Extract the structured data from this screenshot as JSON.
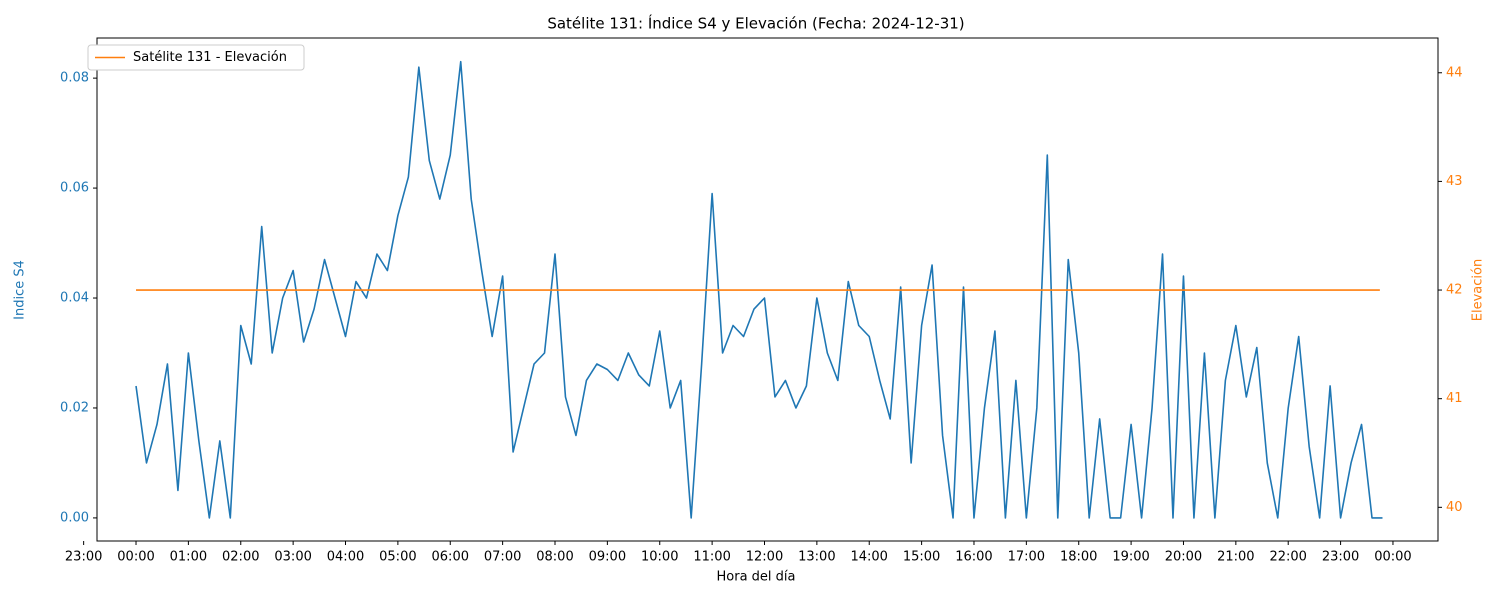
{
  "chart_data": {
    "type": "line",
    "title": "Satélite 131: Índice S4 y Elevación (Fecha: 2024-12-31)",
    "xlabel": "Hora del día",
    "ylabel": "Indice S4",
    "y2label": "Elevación",
    "legend": "upper left",
    "xlim": [
      -0.745,
      24.86
    ],
    "ylim": [
      -0.0042,
      0.0873
    ],
    "y2lim": [
      39.69,
      44.32
    ],
    "xticks": [
      {
        "value": -1,
        "label": "23:00"
      },
      {
        "value": 0,
        "label": "00:00"
      },
      {
        "value": 1,
        "label": "01:00"
      },
      {
        "value": 2,
        "label": "02:00"
      },
      {
        "value": 3,
        "label": "03:00"
      },
      {
        "value": 4,
        "label": "04:00"
      },
      {
        "value": 5,
        "label": "05:00"
      },
      {
        "value": 6,
        "label": "06:00"
      },
      {
        "value": 7,
        "label": "07:00"
      },
      {
        "value": 8,
        "label": "08:00"
      },
      {
        "value": 9,
        "label": "09:00"
      },
      {
        "value": 10,
        "label": "10:00"
      },
      {
        "value": 11,
        "label": "11:00"
      },
      {
        "value": 12,
        "label": "12:00"
      },
      {
        "value": 13,
        "label": "13:00"
      },
      {
        "value": 14,
        "label": "14:00"
      },
      {
        "value": 15,
        "label": "15:00"
      },
      {
        "value": 16,
        "label": "16:00"
      },
      {
        "value": 17,
        "label": "17:00"
      },
      {
        "value": 18,
        "label": "18:00"
      },
      {
        "value": 19,
        "label": "19:00"
      },
      {
        "value": 20,
        "label": "20:00"
      },
      {
        "value": 21,
        "label": "21:00"
      },
      {
        "value": 22,
        "label": "22:00"
      },
      {
        "value": 23,
        "label": "23:00"
      },
      {
        "value": 24,
        "label": "00:00"
      }
    ],
    "yticks": [
      {
        "value": 0,
        "label": "0.00"
      },
      {
        "value": 0.02,
        "label": "0.02"
      },
      {
        "value": 0.04,
        "label": "0.04"
      },
      {
        "value": 0.06,
        "label": "0.06"
      },
      {
        "value": 0.08,
        "label": "0.08"
      }
    ],
    "y2ticks": [
      40,
      41,
      42,
      43,
      44
    ],
    "x": [
      0,
      0.2,
      0.4,
      0.6,
      0.8,
      1,
      1.2,
      1.4,
      1.6,
      1.8,
      2,
      2.2,
      2.4,
      2.6,
      2.8,
      3,
      3.2,
      3.4,
      3.6,
      3.8,
      4,
      4.2,
      4.4,
      4.6,
      4.8,
      5,
      5.2,
      5.4,
      5.6,
      5.8,
      6,
      6.2,
      6.4,
      6.6,
      6.8,
      7,
      7.2,
      7.4,
      7.6,
      7.8,
      8,
      8.2,
      8.4,
      8.6,
      8.8,
      9,
      9.2,
      9.4,
      9.6,
      9.8,
      10,
      10.2,
      10.4,
      10.6,
      10.8,
      11,
      11.2,
      11.4,
      11.6,
      11.8,
      12,
      12.2,
      12.4,
      12.6,
      12.8,
      13,
      13.2,
      13.4,
      13.6,
      13.8,
      14,
      14.2,
      14.4,
      14.6,
      14.8,
      15,
      15.2,
      15.4,
      15.6,
      15.8,
      16,
      16.2,
      16.4,
      16.6,
      16.8,
      17,
      17.2,
      17.4,
      17.6,
      17.8,
      18,
      18.2,
      18.4,
      18.6,
      18.8,
      19,
      19.2,
      19.4,
      19.6,
      19.8,
      20,
      20.2,
      20.4,
      20.6,
      20.8,
      21,
      21.2,
      21.4,
      21.6,
      21.8,
      22,
      22.2,
      22.4,
      22.6,
      22.8,
      23,
      23.2,
      23.4,
      23.6,
      23.8
    ],
    "series": [
      {
        "color": "#1f77b4",
        "values": [
          0.024,
          0.01,
          0.017,
          0.028,
          0.005,
          0.03,
          0.014,
          0.0,
          0.014,
          0.0,
          0.035,
          0.028,
          0.053,
          0.03,
          0.04,
          0.045,
          0.032,
          0.038,
          0.047,
          0.04,
          0.033,
          0.043,
          0.04,
          0.048,
          0.045,
          0.055,
          0.062,
          0.082,
          0.065,
          0.058,
          0.066,
          0.083,
          0.058,
          0.045,
          0.033,
          0.044,
          0.012,
          0.02,
          0.028,
          0.03,
          0.048,
          0.022,
          0.015,
          0.025,
          0.028,
          0.027,
          0.025,
          0.03,
          0.026,
          0.024,
          0.034,
          0.02,
          0.025,
          0.0,
          0.028,
          0.059,
          0.03,
          0.035,
          0.033,
          0.038,
          0.04,
          0.022,
          0.025,
          0.02,
          0.024,
          0.04,
          0.03,
          0.025,
          0.043,
          0.035,
          0.033,
          0.025,
          0.018,
          0.042,
          0.01,
          0.035,
          0.046,
          0.015,
          0.0,
          0.042,
          0.0,
          0.02,
          0.034,
          0.0,
          0.025,
          0.0,
          0.02,
          0.066,
          0.0,
          0.047,
          0.03,
          0.0,
          0.018,
          0.0,
          0.0,
          0.017,
          0.0,
          0.02,
          0.048,
          0.0,
          0.044,
          0.0,
          0.03,
          0.0,
          0.025,
          0.035,
          0.022,
          0.031,
          0.01,
          0.0,
          0.02,
          0.033,
          0.013,
          0.0,
          0.024,
          0.0,
          0.01,
          0.017,
          0.0,
          0.0
        ]
      },
      {
        "name": "Satélite 131 - Elevación",
        "color": "#ff7f0e",
        "axis": "y2",
        "x": [
          0,
          23.75
        ],
        "values": [
          42,
          42
        ]
      }
    ]
  }
}
